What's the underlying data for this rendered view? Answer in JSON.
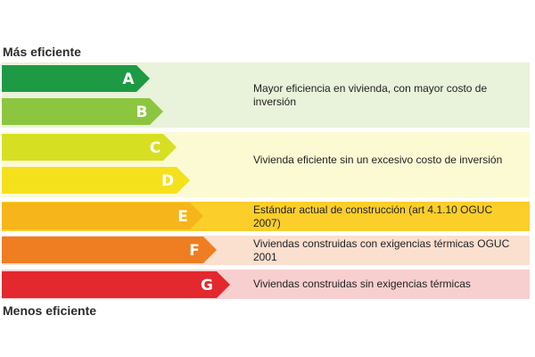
{
  "heading_top": "Más eficiente",
  "heading_bottom": "Menos eficiente",
  "grades": [
    {
      "letter": "A",
      "color": "#1e9a44"
    },
    {
      "letter": "B",
      "color": "#8cc63f"
    },
    {
      "letter": "C",
      "color": "#d7df23"
    },
    {
      "letter": "D",
      "color": "#f5e11b"
    },
    {
      "letter": "E",
      "color": "#f6b51a"
    },
    {
      "letter": "F",
      "color": "#ef7d22"
    },
    {
      "letter": "G",
      "color": "#e3282e"
    }
  ],
  "descriptions": [
    {
      "text": "Mayor eficiencia en vivienda, con mayor costo de inversión",
      "background": "#e9f2da"
    },
    {
      "text": "Vivienda eficiente sin un excesivo costo de inversión",
      "background": "#fbfad3"
    },
    {
      "text": "Estándar actual de construcción (art 4.1.10 OGUC 2007)",
      "background": "#fbce2a"
    },
    {
      "text": "Viviendas construidas con exigencias térmicas OGUC 2001",
      "background": "#fbdfcf"
    },
    {
      "text": "Viviendas construidas sin exigencias térmicas",
      "background": "#f8cfcf"
    }
  ]
}
